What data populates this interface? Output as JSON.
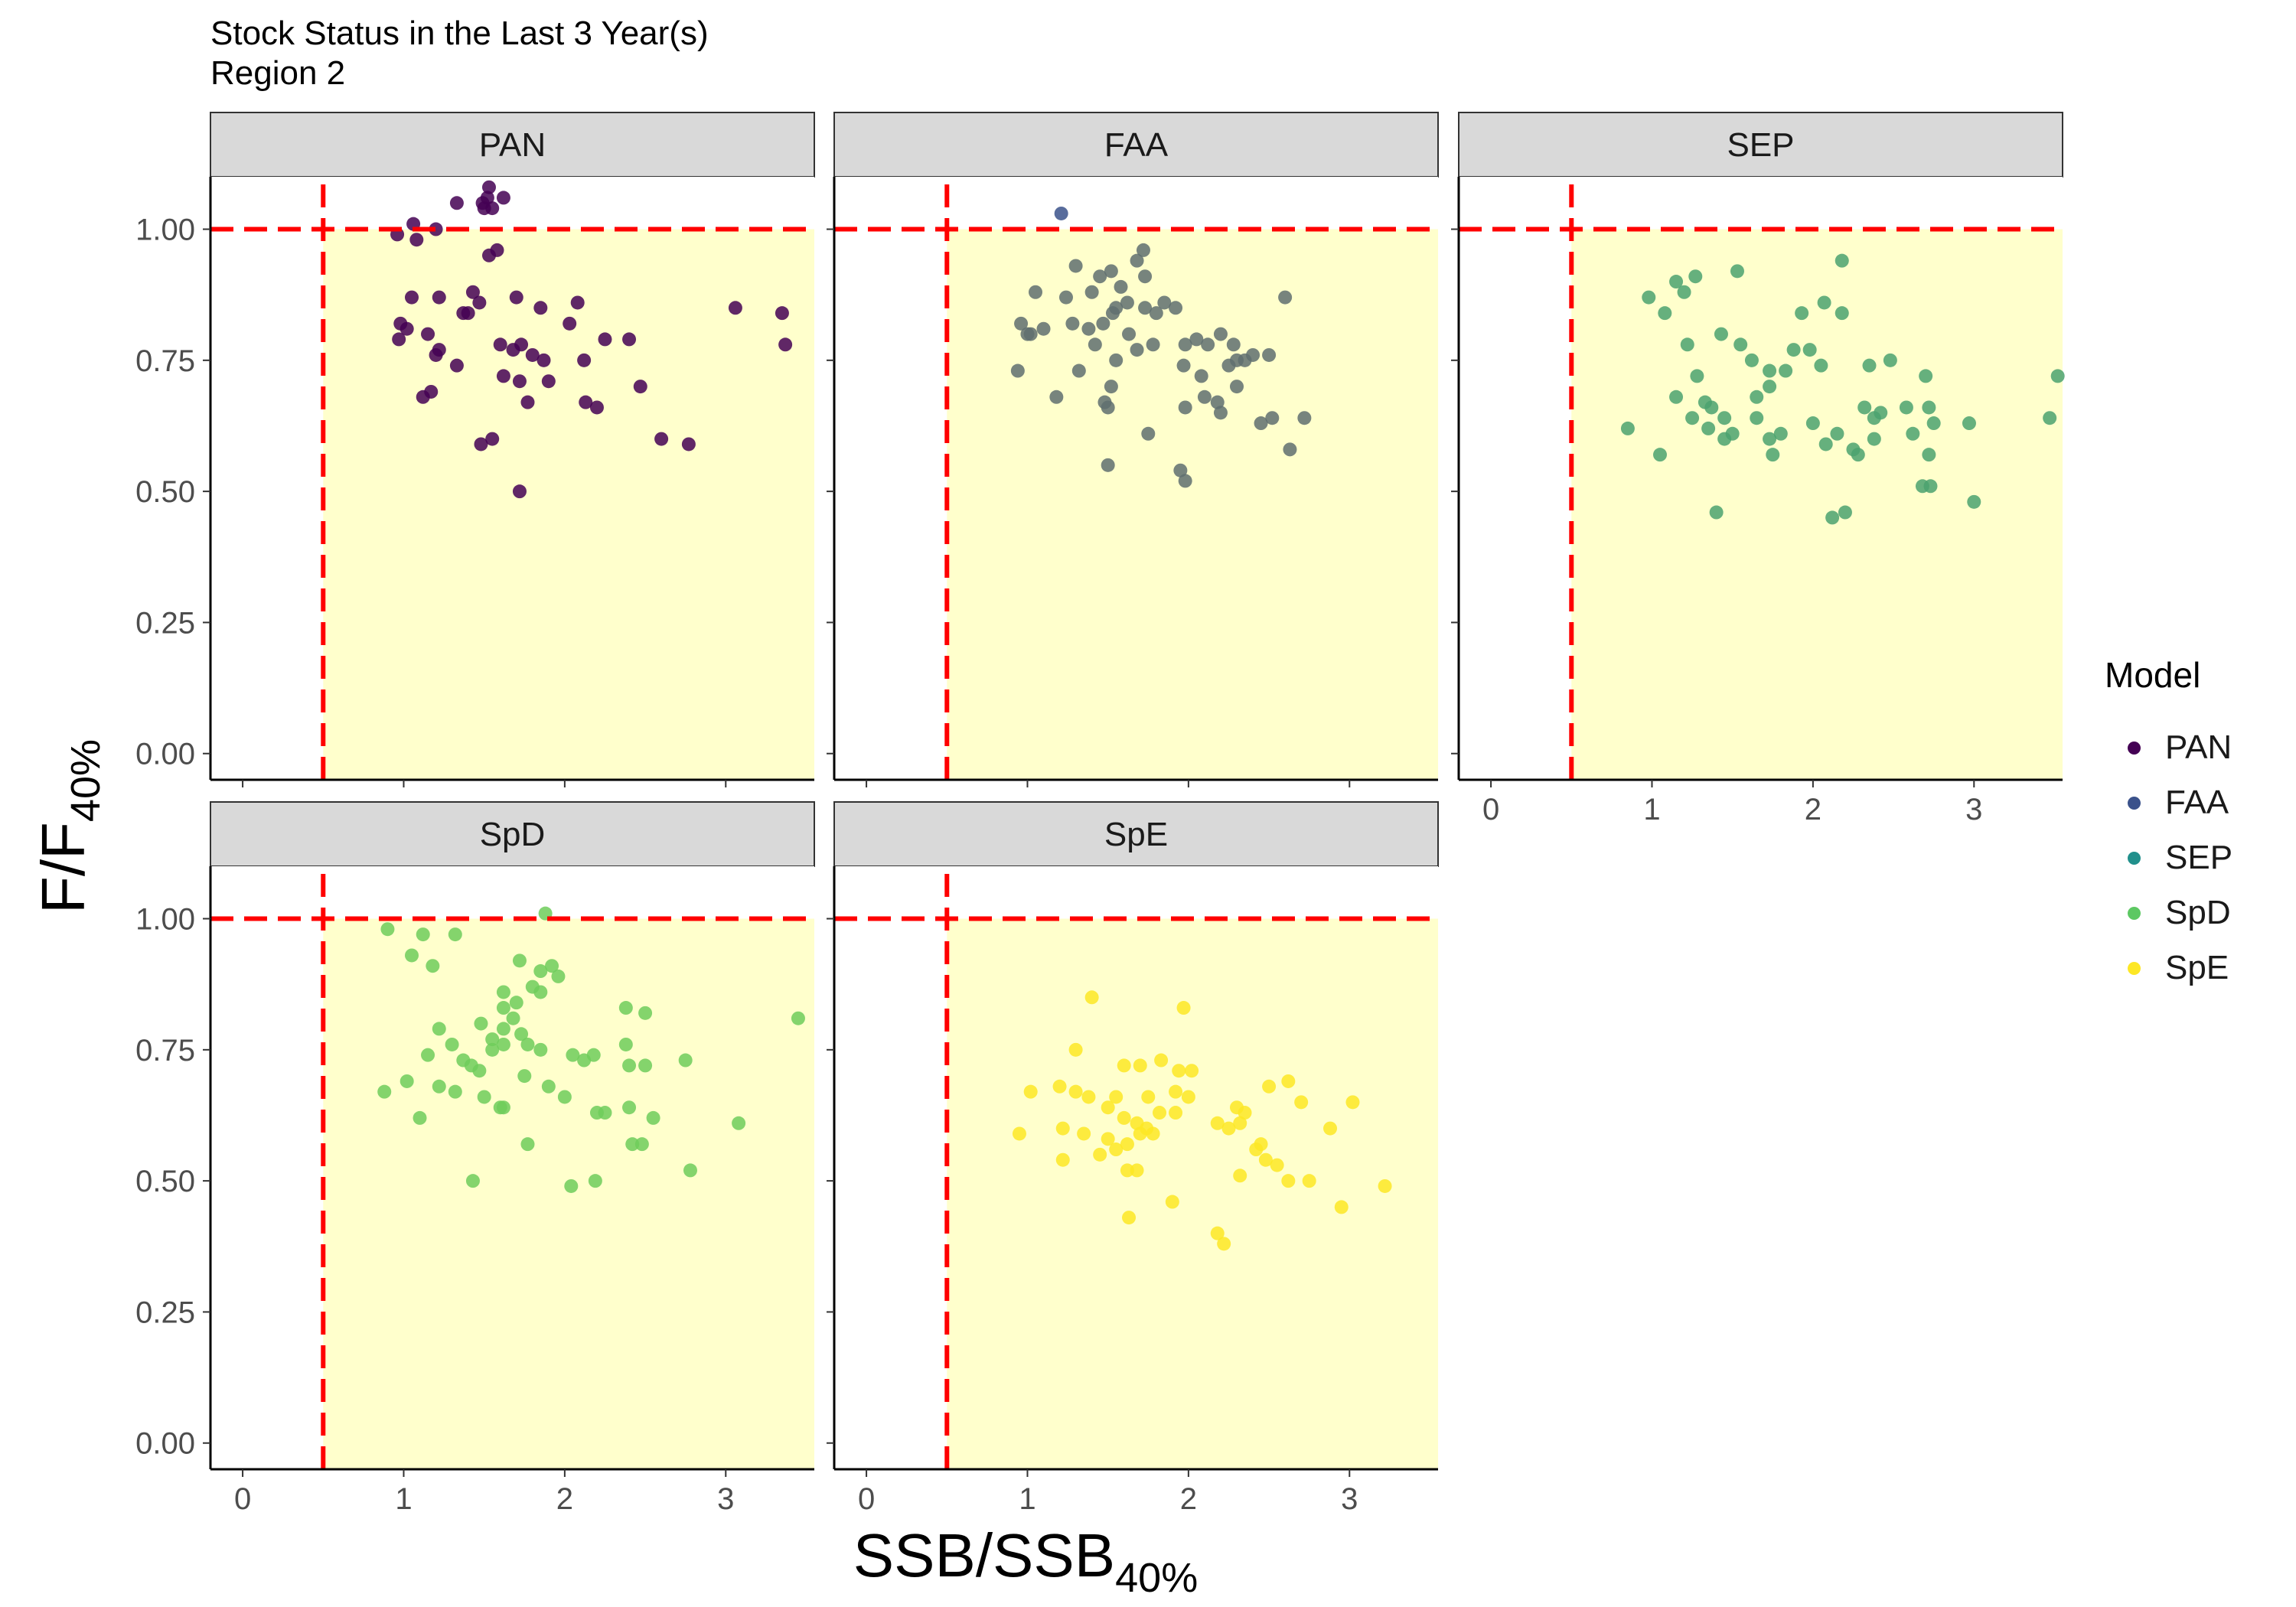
{
  "title": "Stock Status in the Last 3 Year(s)",
  "subtitle": "Region 2",
  "legend": {
    "title": "Model",
    "items": [
      {
        "label": "PAN",
        "color": "#440154"
      },
      {
        "label": "FAA",
        "color": "#3B528B"
      },
      {
        "label": "SEP",
        "color": "#21908C"
      },
      {
        "label": "SpD",
        "color": "#5DC863"
      },
      {
        "label": "SpE",
        "color": "#FDE725"
      }
    ]
  },
  "chart_data": {
    "type": "scatter",
    "xlabel": {
      "main": "SSB/SSB",
      "sub": "40%"
    },
    "ylabel": {
      "main": "F/F",
      "sub": "40%"
    },
    "xlim": [
      -0.2,
      3.55
    ],
    "ylim": [
      -0.05,
      1.1
    ],
    "x_ticks": [
      0,
      1,
      2,
      3
    ],
    "y_ticks": [
      "0.00",
      "0.25",
      "0.50",
      "0.75",
      "1.00"
    ],
    "reference_lines": {
      "x": 0.5,
      "y": 1.0,
      "color": "#ff0000",
      "style": "dashed"
    },
    "target_region": {
      "x_min": 0.5,
      "y_max": 1.0,
      "color": "#ffffcc"
    },
    "panels": [
      {
        "name": "PAN",
        "color": "#440154",
        "points": [
          [
            1.06,
            1.01
          ],
          [
            0.96,
            0.99
          ],
          [
            1.2,
            1.0
          ],
          [
            1.33,
            1.05
          ],
          [
            1.5,
            1.04
          ],
          [
            1.53,
            1.08
          ],
          [
            1.55,
            1.04
          ],
          [
            1.62,
            1.06
          ],
          [
            1.49,
            1.05
          ],
          [
            1.52,
            1.06
          ],
          [
            1.08,
            0.98
          ],
          [
            1.53,
            0.95
          ],
          [
            1.58,
            0.96
          ],
          [
            1.05,
            0.87
          ],
          [
            1.15,
            0.8
          ],
          [
            1.22,
            0.87
          ],
          [
            1.37,
            0.84
          ],
          [
            1.43,
            0.88
          ],
          [
            1.47,
            0.86
          ],
          [
            1.7,
            0.87
          ],
          [
            1.85,
            0.85
          ],
          [
            0.98,
            0.82
          ],
          [
            0.97,
            0.79
          ],
          [
            1.02,
            0.81
          ],
          [
            1.2,
            0.76
          ],
          [
            1.22,
            0.77
          ],
          [
            1.33,
            0.74
          ],
          [
            1.6,
            0.78
          ],
          [
            1.68,
            0.77
          ],
          [
            1.73,
            0.78
          ],
          [
            1.8,
            0.76
          ],
          [
            1.87,
            0.75
          ],
          [
            2.03,
            0.82
          ],
          [
            2.08,
            0.86
          ],
          [
            2.12,
            0.75
          ],
          [
            2.25,
            0.79
          ],
          [
            2.4,
            0.79
          ],
          [
            3.06,
            0.85
          ],
          [
            3.35,
            0.84
          ],
          [
            3.37,
            0.78
          ],
          [
            1.62,
            0.72
          ],
          [
            1.72,
            0.71
          ],
          [
            1.77,
            0.67
          ],
          [
            1.9,
            0.71
          ],
          [
            2.13,
            0.67
          ],
          [
            2.2,
            0.66
          ],
          [
            2.47,
            0.7
          ],
          [
            1.17,
            0.69
          ],
          [
            1.12,
            0.68
          ],
          [
            1.4,
            0.84
          ],
          [
            1.48,
            0.59
          ],
          [
            1.55,
            0.6
          ],
          [
            2.6,
            0.6
          ],
          [
            2.77,
            0.59
          ],
          [
            1.72,
            0.5
          ]
        ]
      },
      {
        "name": "FAA",
        "color": "#3B528B",
        "points": [
          [
            1.21,
            1.03
          ]
        ]
      },
      {
        "name": "FAA",
        "color": "#5F6E6E",
        "points": [
          [
            1.3,
            0.93
          ],
          [
            1.45,
            0.91
          ],
          [
            1.52,
            0.92
          ],
          [
            1.58,
            0.89
          ],
          [
            1.68,
            0.94
          ],
          [
            1.72,
            0.96
          ],
          [
            1.73,
            0.91
          ],
          [
            1.24,
            0.87
          ],
          [
            1.4,
            0.88
          ],
          [
            1.55,
            0.85
          ],
          [
            1.62,
            0.86
          ],
          [
            1.73,
            0.85
          ],
          [
            1.85,
            0.86
          ],
          [
            1.05,
            0.88
          ],
          [
            0.96,
            0.82
          ],
          [
            1.02,
            0.8
          ],
          [
            1.1,
            0.81
          ],
          [
            1.28,
            0.82
          ],
          [
            1.38,
            0.81
          ],
          [
            1.47,
            0.82
          ],
          [
            1.53,
            0.84
          ],
          [
            1.63,
            0.8
          ],
          [
            1.8,
            0.84
          ],
          [
            1.92,
            0.85
          ],
          [
            2.2,
            0.8
          ],
          [
            2.28,
            0.78
          ],
          [
            2.6,
            0.87
          ],
          [
            1.0,
            0.8
          ],
          [
            1.42,
            0.78
          ],
          [
            1.55,
            0.75
          ],
          [
            1.68,
            0.77
          ],
          [
            1.78,
            0.78
          ],
          [
            1.98,
            0.78
          ],
          [
            2.05,
            0.79
          ],
          [
            2.12,
            0.78
          ],
          [
            2.3,
            0.75
          ],
          [
            2.4,
            0.76
          ],
          [
            2.5,
            0.76
          ],
          [
            0.94,
            0.73
          ],
          [
            1.32,
            0.73
          ],
          [
            1.48,
            0.67
          ],
          [
            1.52,
            0.7
          ],
          [
            1.97,
            0.74
          ],
          [
            2.08,
            0.72
          ],
          [
            2.25,
            0.74
          ],
          [
            2.35,
            0.75
          ],
          [
            1.18,
            0.68
          ],
          [
            1.98,
            0.66
          ],
          [
            2.1,
            0.68
          ],
          [
            2.18,
            0.67
          ],
          [
            2.2,
            0.65
          ],
          [
            2.3,
            0.7
          ],
          [
            2.45,
            0.63
          ],
          [
            2.52,
            0.64
          ],
          [
            2.72,
            0.64
          ],
          [
            1.5,
            0.66
          ],
          [
            1.75,
            0.61
          ],
          [
            1.5,
            0.55
          ],
          [
            1.95,
            0.54
          ],
          [
            1.98,
            0.52
          ],
          [
            2.63,
            0.58
          ]
        ]
      },
      {
        "name": "SEP",
        "color": "#4BA26F",
        "points": [
          [
            1.15,
            0.9
          ],
          [
            1.27,
            0.91
          ],
          [
            1.53,
            0.92
          ],
          [
            2.18,
            0.94
          ],
          [
            0.98,
            0.87
          ],
          [
            1.2,
            0.88
          ],
          [
            1.08,
            0.84
          ],
          [
            1.93,
            0.84
          ],
          [
            2.07,
            0.86
          ],
          [
            2.18,
            0.84
          ],
          [
            1.22,
            0.78
          ],
          [
            1.43,
            0.8
          ],
          [
            1.55,
            0.78
          ],
          [
            1.62,
            0.75
          ],
          [
            1.73,
            0.73
          ],
          [
            1.83,
            0.73
          ],
          [
            1.88,
            0.77
          ],
          [
            1.98,
            0.77
          ],
          [
            2.05,
            0.74
          ],
          [
            2.35,
            0.74
          ],
          [
            2.48,
            0.75
          ],
          [
            2.7,
            0.72
          ],
          [
            3.52,
            0.72
          ],
          [
            1.28,
            0.72
          ],
          [
            1.15,
            0.68
          ],
          [
            1.33,
            0.67
          ],
          [
            1.37,
            0.66
          ],
          [
            1.45,
            0.64
          ],
          [
            1.65,
            0.68
          ],
          [
            1.73,
            0.7
          ],
          [
            2.32,
            0.66
          ],
          [
            2.38,
            0.64
          ],
          [
            2.42,
            0.65
          ],
          [
            2.58,
            0.66
          ],
          [
            2.72,
            0.66
          ],
          [
            2.75,
            0.63
          ],
          [
            2.97,
            0.63
          ],
          [
            0.85,
            0.62
          ],
          [
            1.25,
            0.64
          ],
          [
            1.35,
            0.62
          ],
          [
            1.45,
            0.6
          ],
          [
            1.5,
            0.61
          ],
          [
            1.65,
            0.64
          ],
          [
            1.73,
            0.6
          ],
          [
            1.8,
            0.61
          ],
          [
            2.0,
            0.63
          ],
          [
            2.15,
            0.61
          ],
          [
            2.25,
            0.58
          ],
          [
            2.38,
            0.6
          ],
          [
            2.62,
            0.61
          ],
          [
            3.47,
            0.64
          ],
          [
            1.05,
            0.57
          ],
          [
            1.75,
            0.57
          ],
          [
            2.08,
            0.59
          ],
          [
            2.28,
            0.57
          ],
          [
            2.72,
            0.57
          ],
          [
            1.4,
            0.46
          ],
          [
            2.12,
            0.45
          ],
          [
            2.2,
            0.46
          ],
          [
            2.68,
            0.51
          ],
          [
            2.73,
            0.51
          ],
          [
            3.0,
            0.48
          ]
        ]
      },
      {
        "name": "SpD",
        "color": "#6ECC5A",
        "points": [
          [
            0.9,
            0.98
          ],
          [
            1.12,
            0.97
          ],
          [
            1.32,
            0.97
          ],
          [
            1.88,
            1.01
          ],
          [
            1.05,
            0.93
          ],
          [
            1.18,
            0.91
          ],
          [
            1.72,
            0.92
          ],
          [
            1.85,
            0.9
          ],
          [
            1.92,
            0.91
          ],
          [
            1.96,
            0.89
          ],
          [
            1.62,
            0.86
          ],
          [
            1.7,
            0.84
          ],
          [
            1.8,
            0.87
          ],
          [
            1.85,
            0.86
          ],
          [
            1.62,
            0.83
          ],
          [
            1.68,
            0.81
          ],
          [
            1.73,
            0.78
          ],
          [
            2.38,
            0.83
          ],
          [
            2.5,
            0.82
          ],
          [
            3.45,
            0.81
          ],
          [
            1.22,
            0.79
          ],
          [
            1.48,
            0.8
          ],
          [
            1.55,
            0.77
          ],
          [
            1.62,
            0.79
          ],
          [
            1.15,
            0.74
          ],
          [
            1.3,
            0.76
          ],
          [
            1.37,
            0.73
          ],
          [
            1.42,
            0.72
          ],
          [
            1.47,
            0.71
          ],
          [
            1.55,
            0.75
          ],
          [
            1.62,
            0.76
          ],
          [
            1.77,
            0.76
          ],
          [
            1.85,
            0.75
          ],
          [
            2.05,
            0.74
          ],
          [
            2.12,
            0.73
          ],
          [
            2.18,
            0.74
          ],
          [
            2.38,
            0.76
          ],
          [
            2.4,
            0.72
          ],
          [
            2.5,
            0.72
          ],
          [
            2.75,
            0.73
          ],
          [
            1.02,
            0.69
          ],
          [
            1.22,
            0.68
          ],
          [
            1.32,
            0.67
          ],
          [
            1.5,
            0.66
          ],
          [
            1.62,
            0.64
          ],
          [
            1.75,
            0.7
          ],
          [
            1.9,
            0.68
          ],
          [
            2.0,
            0.66
          ],
          [
            2.25,
            0.63
          ],
          [
            2.4,
            0.64
          ],
          [
            2.55,
            0.62
          ],
          [
            0.88,
            0.67
          ],
          [
            1.1,
            0.62
          ],
          [
            1.6,
            0.64
          ],
          [
            2.2,
            0.63
          ],
          [
            3.08,
            0.61
          ],
          [
            1.77,
            0.57
          ],
          [
            2.42,
            0.57
          ],
          [
            2.48,
            0.57
          ],
          [
            2.78,
            0.52
          ],
          [
            1.43,
            0.5
          ],
          [
            2.04,
            0.49
          ],
          [
            2.19,
            0.5
          ]
        ]
      },
      {
        "name": "SpE",
        "color": "#FDE725",
        "points": [
          [
            1.4,
            0.85
          ],
          [
            1.97,
            0.83
          ],
          [
            1.3,
            0.75
          ],
          [
            1.6,
            0.72
          ],
          [
            1.7,
            0.72
          ],
          [
            1.83,
            0.73
          ],
          [
            1.94,
            0.71
          ],
          [
            2.02,
            0.71
          ],
          [
            1.92,
            0.67
          ],
          [
            1.2,
            0.68
          ],
          [
            1.3,
            0.67
          ],
          [
            1.38,
            0.66
          ],
          [
            1.55,
            0.66
          ],
          [
            1.75,
            0.66
          ],
          [
            2.0,
            0.66
          ],
          [
            1.02,
            0.67
          ],
          [
            1.5,
            0.64
          ],
          [
            1.6,
            0.62
          ],
          [
            1.68,
            0.61
          ],
          [
            1.74,
            0.6
          ],
          [
            1.82,
            0.63
          ],
          [
            1.92,
            0.63
          ],
          [
            2.3,
            0.64
          ],
          [
            2.35,
            0.63
          ],
          [
            2.5,
            0.68
          ],
          [
            2.62,
            0.69
          ],
          [
            2.7,
            0.65
          ],
          [
            3.02,
            0.65
          ],
          [
            0.95,
            0.59
          ],
          [
            1.22,
            0.6
          ],
          [
            1.35,
            0.59
          ],
          [
            1.5,
            0.58
          ],
          [
            1.55,
            0.56
          ],
          [
            1.62,
            0.57
          ],
          [
            1.7,
            0.59
          ],
          [
            1.78,
            0.59
          ],
          [
            2.18,
            0.61
          ],
          [
            2.25,
            0.6
          ],
          [
            2.32,
            0.61
          ],
          [
            2.45,
            0.57
          ],
          [
            2.88,
            0.6
          ],
          [
            1.22,
            0.54
          ],
          [
            1.45,
            0.55
          ],
          [
            1.62,
            0.52
          ],
          [
            1.68,
            0.52
          ],
          [
            2.32,
            0.51
          ],
          [
            2.42,
            0.56
          ],
          [
            2.48,
            0.54
          ],
          [
            2.55,
            0.53
          ],
          [
            2.62,
            0.5
          ],
          [
            2.75,
            0.5
          ],
          [
            3.22,
            0.49
          ],
          [
            1.63,
            0.43
          ],
          [
            1.9,
            0.46
          ],
          [
            2.18,
            0.4
          ],
          [
            2.22,
            0.38
          ],
          [
            2.95,
            0.45
          ]
        ]
      }
    ]
  }
}
